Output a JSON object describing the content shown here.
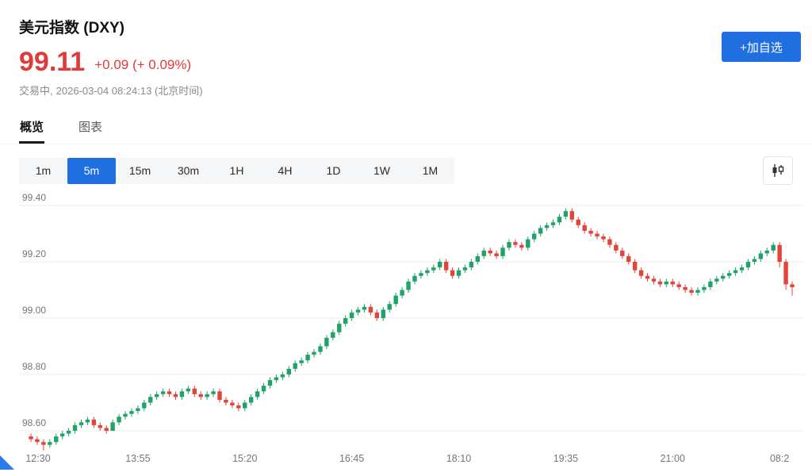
{
  "header": {
    "title": "美元指数 (DXY)",
    "price": "99.11",
    "change": "+0.09 (+ 0.09%)",
    "status_label": "交易中,",
    "timestamp": "2026-03-04 08:24:13 (北京时间)",
    "watchlist_button": "+加自选"
  },
  "tabs": [
    {
      "name": "overview",
      "label": "概览",
      "active": true
    },
    {
      "name": "chart",
      "label": "图表",
      "active": false
    }
  ],
  "timeframes": [
    {
      "label": "1m",
      "active": false
    },
    {
      "label": "5m",
      "active": true
    },
    {
      "label": "15m",
      "active": false
    },
    {
      "label": "30m",
      "active": false
    },
    {
      "label": "1H",
      "active": false
    },
    {
      "label": "4H",
      "active": false
    },
    {
      "label": "1D",
      "active": false
    },
    {
      "label": "1W",
      "active": false
    },
    {
      "label": "1M",
      "active": false
    }
  ],
  "colors": {
    "accent_blue": "#1f6fe0",
    "quote_red": "#e03a3a",
    "up_green": "#1fa368",
    "down_red": "#e0443a",
    "grid": "#ececec",
    "tick_text": "#757575"
  },
  "chart_data": {
    "type": "candlestick",
    "title": "美元指数 (DXY) 5m K线",
    "interval": "5m",
    "y_ticks": [
      99.4,
      99.2,
      99.0,
      98.8,
      98.6
    ],
    "ylim": [
      98.5,
      99.44
    ],
    "x_labels": [
      "12:30",
      "13:55",
      "15:20",
      "16:45",
      "18:10",
      "19:35",
      "21:00",
      "08:2"
    ],
    "x_label_indices": [
      0,
      17,
      34,
      51,
      68,
      85,
      102,
      119
    ],
    "grid": true,
    "candles": [
      [
        98.58,
        98.59,
        98.56,
        98.57
      ],
      [
        98.57,
        98.58,
        98.55,
        98.56
      ],
      [
        98.56,
        98.57,
        98.53,
        98.55
      ],
      [
        98.55,
        98.57,
        98.54,
        98.56
      ],
      [
        98.56,
        98.59,
        98.55,
        98.58
      ],
      [
        98.58,
        98.6,
        98.57,
        98.59
      ],
      [
        98.59,
        98.61,
        98.58,
        98.6
      ],
      [
        98.6,
        98.63,
        98.59,
        98.62
      ],
      [
        98.62,
        98.64,
        98.61,
        98.63
      ],
      [
        98.63,
        98.65,
        98.62,
        98.64
      ],
      [
        98.64,
        98.65,
        98.61,
        98.62
      ],
      [
        98.62,
        98.63,
        98.6,
        98.61
      ],
      [
        98.61,
        98.62,
        98.59,
        98.6
      ],
      [
        98.6,
        98.64,
        98.6,
        98.63
      ],
      [
        98.63,
        98.66,
        98.62,
        98.65
      ],
      [
        98.65,
        98.67,
        98.64,
        98.66
      ],
      [
        98.66,
        98.68,
        98.65,
        98.67
      ],
      [
        98.67,
        98.69,
        98.66,
        98.68
      ],
      [
        98.68,
        98.71,
        98.67,
        98.7
      ],
      [
        98.7,
        98.73,
        98.69,
        98.72
      ],
      [
        98.72,
        98.74,
        98.71,
        98.73
      ],
      [
        98.73,
        98.75,
        98.72,
        98.74
      ],
      [
        98.74,
        98.75,
        98.72,
        98.73
      ],
      [
        98.73,
        98.74,
        98.71,
        98.72
      ],
      [
        98.72,
        98.75,
        98.71,
        98.74
      ],
      [
        98.74,
        98.76,
        98.73,
        98.75
      ],
      [
        98.75,
        98.76,
        98.72,
        98.73
      ],
      [
        98.73,
        98.74,
        98.71,
        98.72
      ],
      [
        98.72,
        98.74,
        98.71,
        98.73
      ],
      [
        98.73,
        98.75,
        98.72,
        98.74
      ],
      [
        98.74,
        98.75,
        98.7,
        98.71
      ],
      [
        98.71,
        98.72,
        98.69,
        98.7
      ],
      [
        98.7,
        98.71,
        98.68,
        98.69
      ],
      [
        98.69,
        98.7,
        98.67,
        98.68
      ],
      [
        98.68,
        98.71,
        98.67,
        98.7
      ],
      [
        98.7,
        98.73,
        98.69,
        98.72
      ],
      [
        98.72,
        98.75,
        98.71,
        98.74
      ],
      [
        98.74,
        98.77,
        98.73,
        98.76
      ],
      [
        98.76,
        98.79,
        98.75,
        98.78
      ],
      [
        98.78,
        98.8,
        98.77,
        98.79
      ],
      [
        98.79,
        98.81,
        98.78,
        98.8
      ],
      [
        98.8,
        98.83,
        98.79,
        98.82
      ],
      [
        98.82,
        98.85,
        98.81,
        98.84
      ],
      [
        98.84,
        98.86,
        98.83,
        98.85
      ],
      [
        98.85,
        98.88,
        98.84,
        98.87
      ],
      [
        98.87,
        98.89,
        98.86,
        98.88
      ],
      [
        98.88,
        98.91,
        98.87,
        98.9
      ],
      [
        98.9,
        98.94,
        98.89,
        98.93
      ],
      [
        98.93,
        98.96,
        98.92,
        98.95
      ],
      [
        98.95,
        98.99,
        98.94,
        98.98
      ],
      [
        98.98,
        99.01,
        98.97,
        99.0
      ],
      [
        99.0,
        99.03,
        98.99,
        99.02
      ],
      [
        99.02,
        99.04,
        99.01,
        99.03
      ],
      [
        99.03,
        99.05,
        99.02,
        99.04
      ],
      [
        99.04,
        99.05,
        99.01,
        99.02
      ],
      [
        99.02,
        99.03,
        98.99,
        99.0
      ],
      [
        99.0,
        99.04,
        98.99,
        99.03
      ],
      [
        99.03,
        99.06,
        99.02,
        99.05
      ],
      [
        99.05,
        99.09,
        99.04,
        99.08
      ],
      [
        99.08,
        99.11,
        99.07,
        99.1
      ],
      [
        99.1,
        99.14,
        99.09,
        99.13
      ],
      [
        99.13,
        99.16,
        99.12,
        99.15
      ],
      [
        99.15,
        99.17,
        99.14,
        99.16
      ],
      [
        99.16,
        99.18,
        99.15,
        99.17
      ],
      [
        99.17,
        99.19,
        99.16,
        99.18
      ],
      [
        99.18,
        99.21,
        99.17,
        99.2
      ],
      [
        99.2,
        99.21,
        99.16,
        99.17
      ],
      [
        99.17,
        99.18,
        99.14,
        99.15
      ],
      [
        99.15,
        99.18,
        99.14,
        99.17
      ],
      [
        99.17,
        99.19,
        99.16,
        99.18
      ],
      [
        99.18,
        99.21,
        99.17,
        99.2
      ],
      [
        99.2,
        99.23,
        99.19,
        99.22
      ],
      [
        99.22,
        99.25,
        99.21,
        99.24
      ],
      [
        99.24,
        99.25,
        99.22,
        99.23
      ],
      [
        99.23,
        99.24,
        99.21,
        99.22
      ],
      [
        99.22,
        99.26,
        99.21,
        99.25
      ],
      [
        99.25,
        99.28,
        99.24,
        99.27
      ],
      [
        99.27,
        99.28,
        99.25,
        99.26
      ],
      [
        99.26,
        99.27,
        99.24,
        99.25
      ],
      [
        99.25,
        99.29,
        99.24,
        99.28
      ],
      [
        99.28,
        99.31,
        99.27,
        99.3
      ],
      [
        99.3,
        99.33,
        99.29,
        99.32
      ],
      [
        99.32,
        99.34,
        99.31,
        99.33
      ],
      [
        99.33,
        99.35,
        99.32,
        99.34
      ],
      [
        99.34,
        99.37,
        99.33,
        99.36
      ],
      [
        99.36,
        99.39,
        99.35,
        99.38
      ],
      [
        99.38,
        99.39,
        99.34,
        99.35
      ],
      [
        99.35,
        99.36,
        99.32,
        99.33
      ],
      [
        99.33,
        99.34,
        99.3,
        99.31
      ],
      [
        99.31,
        99.32,
        99.29,
        99.3
      ],
      [
        99.3,
        99.31,
        99.28,
        99.29
      ],
      [
        99.29,
        99.3,
        99.27,
        99.28
      ],
      [
        99.28,
        99.29,
        99.25,
        99.26
      ],
      [
        99.26,
        99.27,
        99.23,
        99.24
      ],
      [
        99.24,
        99.25,
        99.21,
        99.22
      ],
      [
        99.22,
        99.23,
        99.19,
        99.2
      ],
      [
        99.2,
        99.21,
        99.16,
        99.17
      ],
      [
        99.17,
        99.18,
        99.14,
        99.15
      ],
      [
        99.15,
        99.16,
        99.13,
        99.14
      ],
      [
        99.14,
        99.15,
        99.12,
        99.13
      ],
      [
        99.13,
        99.14,
        99.11,
        99.12
      ],
      [
        99.12,
        99.14,
        99.11,
        99.13
      ],
      [
        99.13,
        99.14,
        99.11,
        99.12
      ],
      [
        99.12,
        99.13,
        99.1,
        99.11
      ],
      [
        99.11,
        99.12,
        99.09,
        99.1
      ],
      [
        99.1,
        99.11,
        99.08,
        99.09
      ],
      [
        99.09,
        99.11,
        99.08,
        99.1
      ],
      [
        99.1,
        99.12,
        99.09,
        99.11
      ],
      [
        99.11,
        99.14,
        99.1,
        99.13
      ],
      [
        99.13,
        99.15,
        99.12,
        99.14
      ],
      [
        99.14,
        99.16,
        99.13,
        99.15
      ],
      [
        99.15,
        99.17,
        99.14,
        99.16
      ],
      [
        99.16,
        99.18,
        99.15,
        99.17
      ],
      [
        99.17,
        99.19,
        99.16,
        99.18
      ],
      [
        99.18,
        99.21,
        99.17,
        99.2
      ],
      [
        99.2,
        99.22,
        99.19,
        99.21
      ],
      [
        99.21,
        99.24,
        99.2,
        99.23
      ],
      [
        99.23,
        99.25,
        99.22,
        99.24
      ],
      [
        99.24,
        99.27,
        99.23,
        99.26
      ],
      [
        99.26,
        99.27,
        99.18,
        99.2
      ],
      [
        99.2,
        99.21,
        99.1,
        99.12
      ],
      [
        99.12,
        99.13,
        99.08,
        99.11
      ]
    ]
  }
}
